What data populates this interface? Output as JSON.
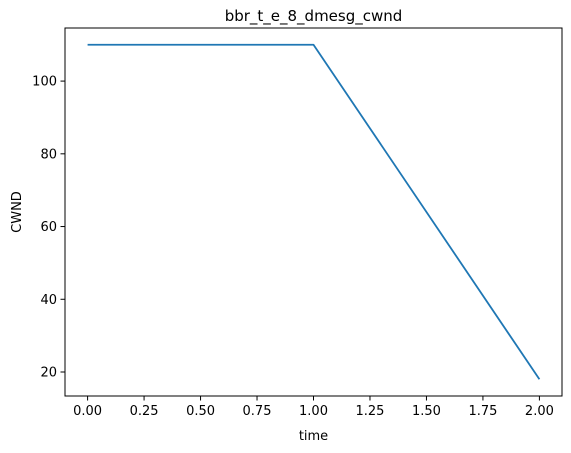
{
  "chart_data": {
    "type": "line",
    "title": "bbr_t_e_8_dmesg_cwnd",
    "xlabel": "time",
    "ylabel": "CWND",
    "xlim": [
      -0.1,
      2.1
    ],
    "ylim": [
      13.4,
      114.6
    ],
    "xticks": [
      0.0,
      0.25,
      0.5,
      0.75,
      1.0,
      1.25,
      1.5,
      1.75,
      2.0
    ],
    "xtick_labels": [
      "0.00",
      "0.25",
      "0.50",
      "0.75",
      "1.00",
      "1.25",
      "1.50",
      "1.75",
      "2.00"
    ],
    "yticks": [
      20,
      40,
      60,
      80,
      100
    ],
    "ytick_labels": [
      "20",
      "40",
      "60",
      "80",
      "100"
    ],
    "grid": false,
    "series": [
      {
        "x": [
          0.0,
          1.0,
          2.0
        ],
        "y": [
          110,
          110,
          18
        ],
        "color": "#1f77b4"
      }
    ]
  }
}
